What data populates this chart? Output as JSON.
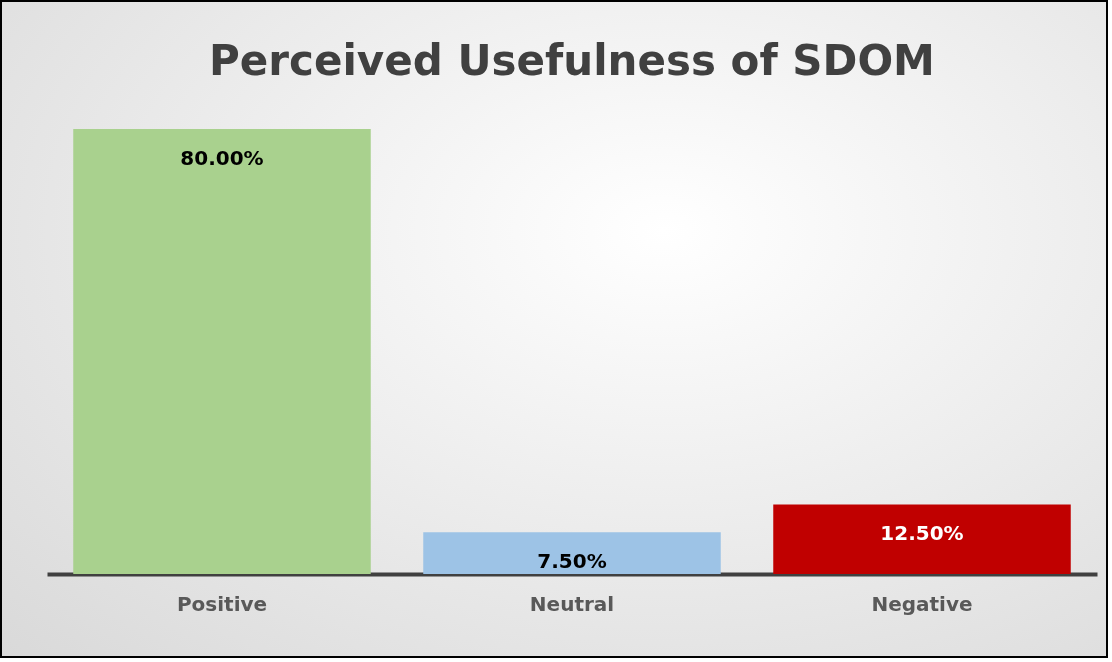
{
  "chart_data": {
    "type": "bar",
    "title": "Perceived Usefulness of SDOM",
    "categories": [
      "Positive",
      "Neutral",
      "Negative"
    ],
    "values": [
      80,
      7.5,
      12.5
    ],
    "colors": [
      "#a9d18e",
      "#9dc3e6",
      "#c00000"
    ],
    "value_labels": [
      "80.00%",
      "7.50%",
      "12.50%"
    ]
  }
}
